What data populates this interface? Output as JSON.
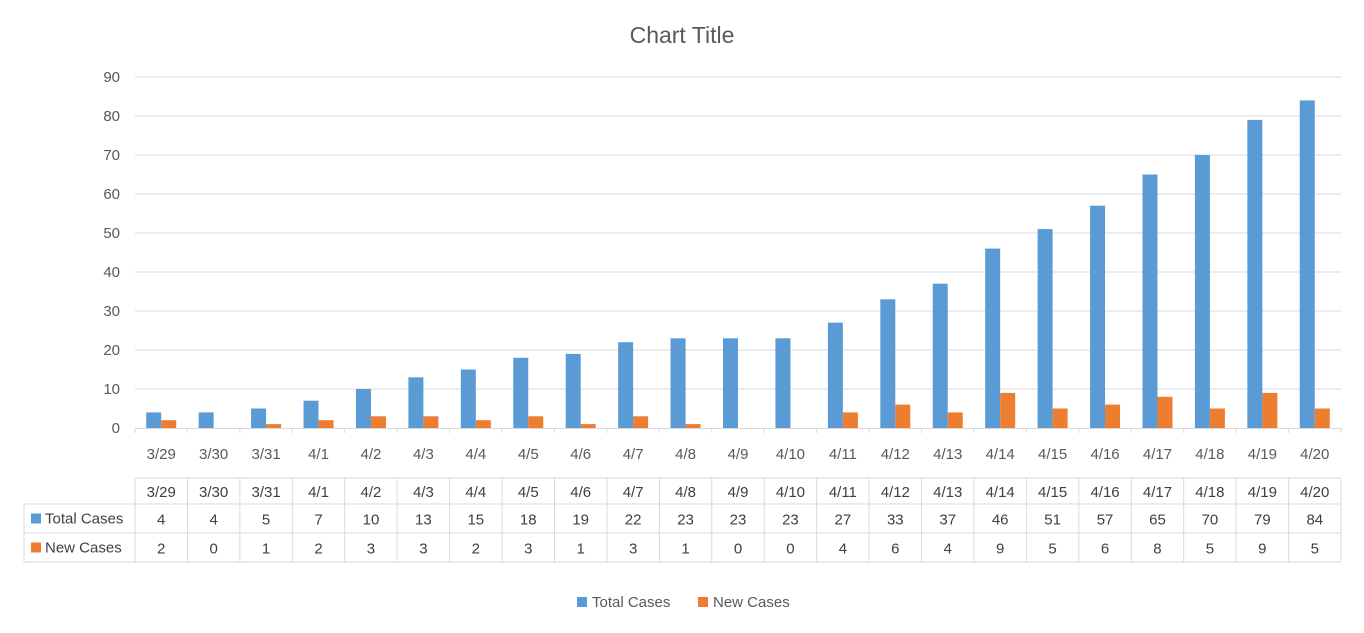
{
  "chart_data": {
    "type": "bar",
    "title": "Chart Title",
    "categories": [
      "3/29",
      "3/30",
      "3/31",
      "4/1",
      "4/2",
      "4/3",
      "4/4",
      "4/5",
      "4/6",
      "4/7",
      "4/8",
      "4/9",
      "4/10",
      "4/11",
      "4/12",
      "4/13",
      "4/14",
      "4/15",
      "4/16",
      "4/17",
      "4/18",
      "4/19",
      "4/20"
    ],
    "series": [
      {
        "name": "Total Cases",
        "color": "#5B9BD5",
        "values": [
          4,
          4,
          5,
          7,
          10,
          13,
          15,
          18,
          19,
          22,
          23,
          23,
          23,
          27,
          33,
          37,
          46,
          51,
          57,
          65,
          70,
          79,
          84
        ]
      },
      {
        "name": "New Cases",
        "color": "#ED7D31",
        "values": [
          2,
          0,
          1,
          2,
          3,
          3,
          2,
          3,
          1,
          3,
          1,
          0,
          0,
          4,
          6,
          4,
          9,
          5,
          6,
          8,
          5,
          9,
          5
        ]
      }
    ],
    "ylim": [
      0,
      90
    ],
    "yticks": [
      "0",
      "10",
      "20",
      "30",
      "40",
      "50",
      "60",
      "70",
      "80",
      "90"
    ],
    "grid": true,
    "data_table": true,
    "legend_position": "bottom"
  }
}
